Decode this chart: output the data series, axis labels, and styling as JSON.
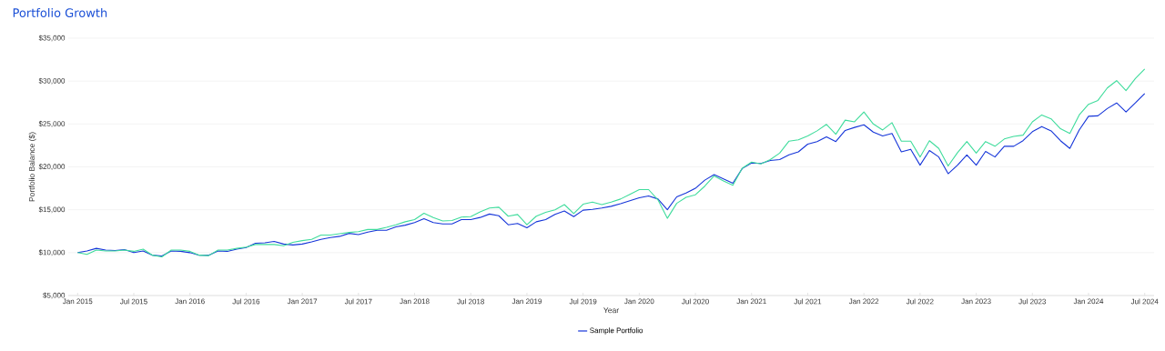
{
  "chart_data": {
    "type": "line",
    "title": "Portfolio Growth",
    "xlabel": "Year",
    "ylabel": "Portfolio Balance ($)",
    "x": [
      "2015-01",
      "2015-02",
      "2015-03",
      "2015-04",
      "2015-05",
      "2015-06",
      "2015-07",
      "2015-08",
      "2015-09",
      "2015-10",
      "2015-11",
      "2015-12",
      "2016-01",
      "2016-02",
      "2016-03",
      "2016-04",
      "2016-05",
      "2016-06",
      "2016-07",
      "2016-08",
      "2016-09",
      "2016-10",
      "2016-11",
      "2016-12",
      "2017-01",
      "2017-02",
      "2017-03",
      "2017-04",
      "2017-05",
      "2017-06",
      "2017-07",
      "2017-08",
      "2017-09",
      "2017-10",
      "2017-11",
      "2017-12",
      "2018-01",
      "2018-02",
      "2018-03",
      "2018-04",
      "2018-05",
      "2018-06",
      "2018-07",
      "2018-08",
      "2018-09",
      "2018-10",
      "2018-11",
      "2018-12",
      "2019-01",
      "2019-02",
      "2019-03",
      "2019-04",
      "2019-05",
      "2019-06",
      "2019-07",
      "2019-08",
      "2019-09",
      "2019-10",
      "2019-11",
      "2019-12",
      "2020-01",
      "2020-02",
      "2020-03",
      "2020-04",
      "2020-05",
      "2020-06",
      "2020-07",
      "2020-08",
      "2020-09",
      "2020-10",
      "2020-11",
      "2020-12",
      "2021-01",
      "2021-02",
      "2021-03",
      "2021-04",
      "2021-05",
      "2021-06",
      "2021-07",
      "2021-08",
      "2021-09",
      "2021-10",
      "2021-11",
      "2021-12",
      "2022-01",
      "2022-02",
      "2022-03",
      "2022-04",
      "2022-05",
      "2022-06",
      "2022-07",
      "2022-08",
      "2022-09",
      "2022-10",
      "2022-11",
      "2022-12",
      "2023-01",
      "2023-02",
      "2023-03",
      "2023-04",
      "2023-05",
      "2023-06",
      "2023-07",
      "2023-08",
      "2023-09",
      "2023-10",
      "2023-11",
      "2023-12",
      "2024-01",
      "2024-02",
      "2024-03",
      "2024-04",
      "2024-05",
      "2024-06",
      "2024-07"
    ],
    "series": [
      {
        "name": "Sample Portfolio",
        "color": "#1535d9",
        "values": [
          10000,
          10200,
          10500,
          10300,
          10250,
          10350,
          10000,
          10200,
          9700,
          9600,
          10200,
          10150,
          10000,
          9700,
          9700,
          10200,
          10150,
          10400,
          10600,
          11100,
          11150,
          11300,
          11000,
          10900,
          11000,
          11250,
          11550,
          11750,
          11900,
          12250,
          12100,
          12400,
          12600,
          12600,
          13000,
          13200,
          13500,
          13950,
          13500,
          13350,
          13350,
          13850,
          13850,
          14100,
          14500,
          14300,
          13250,
          13400,
          12900,
          13600,
          13850,
          14450,
          14850,
          14200,
          14950,
          15050,
          15200,
          15400,
          15700,
          16050,
          16400,
          16600,
          16250,
          15000,
          16500,
          16950,
          17500,
          18450,
          19100,
          18600,
          18100,
          19800,
          20450,
          20400,
          20750,
          20850,
          21400,
          21750,
          22650,
          22950,
          23500,
          22950,
          24250,
          24600,
          24900,
          24050,
          23600,
          23900,
          21750,
          22050,
          20200,
          21900,
          21150,
          19200,
          20200,
          21400,
          20200,
          21800,
          21150,
          22400,
          22400,
          23050,
          24100,
          24700,
          24200,
          23050,
          22150,
          24300,
          25900,
          25950,
          26800,
          27450,
          26400,
          27450,
          28550
        ]
      },
      {
        "color": "#3fdc9c",
        "values": [
          10000,
          9800,
          10300,
          10200,
          10200,
          10300,
          10150,
          10400,
          9700,
          9500,
          10300,
          10300,
          10150,
          9700,
          9650,
          10300,
          10300,
          10500,
          10650,
          10950,
          10950,
          10950,
          10800,
          11200,
          11400,
          11550,
          12050,
          12050,
          12200,
          12350,
          12450,
          12700,
          12700,
          12950,
          13250,
          13600,
          13850,
          14600,
          14100,
          13700,
          13750,
          14150,
          14200,
          14750,
          15200,
          15300,
          14250,
          14450,
          13250,
          14250,
          14700,
          15000,
          15600,
          14550,
          15650,
          15900,
          15600,
          15900,
          16250,
          16800,
          17350,
          17350,
          16150,
          14000,
          15750,
          16450,
          16750,
          17750,
          18950,
          18350,
          17850,
          19850,
          20550,
          20350,
          20850,
          21600,
          23000,
          23150,
          23600,
          24200,
          24950,
          23800,
          25450,
          25250,
          26400,
          25000,
          24300,
          25150,
          23000,
          23000,
          21150,
          23050,
          22150,
          20100,
          21650,
          22950,
          21600,
          22950,
          22400,
          23250,
          23550,
          23700,
          25250,
          26050,
          25600,
          24450,
          23900,
          26050,
          27300,
          27750,
          29200,
          30050,
          28900,
          30300,
          31400
        ]
      }
    ],
    "xlim": [
      "2014-12",
      "2024-08"
    ],
    "xticks": [
      {
        "value": "2015-01",
        "label": "Jan 2015"
      },
      {
        "value": "2015-07",
        "label": "Jul 2015"
      },
      {
        "value": "2016-01",
        "label": "Jan 2016"
      },
      {
        "value": "2016-07",
        "label": "Jul 2016"
      },
      {
        "value": "2017-01",
        "label": "Jan 2017"
      },
      {
        "value": "2017-07",
        "label": "Jul 2017"
      },
      {
        "value": "2018-01",
        "label": "Jan 2018"
      },
      {
        "value": "2018-07",
        "label": "Jul 2018"
      },
      {
        "value": "2019-01",
        "label": "Jan 2019"
      },
      {
        "value": "2019-07",
        "label": "Jul 2019"
      },
      {
        "value": "2020-01",
        "label": "Jan 2020"
      },
      {
        "value": "2020-07",
        "label": "Jul 2020"
      },
      {
        "value": "2021-01",
        "label": "Jan 2021"
      },
      {
        "value": "2021-07",
        "label": "Jul 2021"
      },
      {
        "value": "2022-01",
        "label": "Jan 2022"
      },
      {
        "value": "2022-07",
        "label": "Jul 2022"
      },
      {
        "value": "2023-01",
        "label": "Jan 2023"
      },
      {
        "value": "2023-07",
        "label": "Jul 2023"
      },
      {
        "value": "2024-01",
        "label": "Jan 2024"
      },
      {
        "value": "2024-07",
        "label": "Jul 2024"
      }
    ],
    "ylim": [
      5000,
      35000
    ],
    "yticks": [
      {
        "value": 5000,
        "label": "$5,000"
      },
      {
        "value": 10000,
        "label": "$10,000"
      },
      {
        "value": 15000,
        "label": "$15,000"
      },
      {
        "value": 20000,
        "label": "$20,000"
      },
      {
        "value": 25000,
        "label": "$25,000"
      },
      {
        "value": 30000,
        "label": "$30,000"
      },
      {
        "value": 35000,
        "label": "$35,000"
      }
    ],
    "grid": "y",
    "legend": "bottom",
    "marker": "none",
    "line_style": "solid"
  }
}
